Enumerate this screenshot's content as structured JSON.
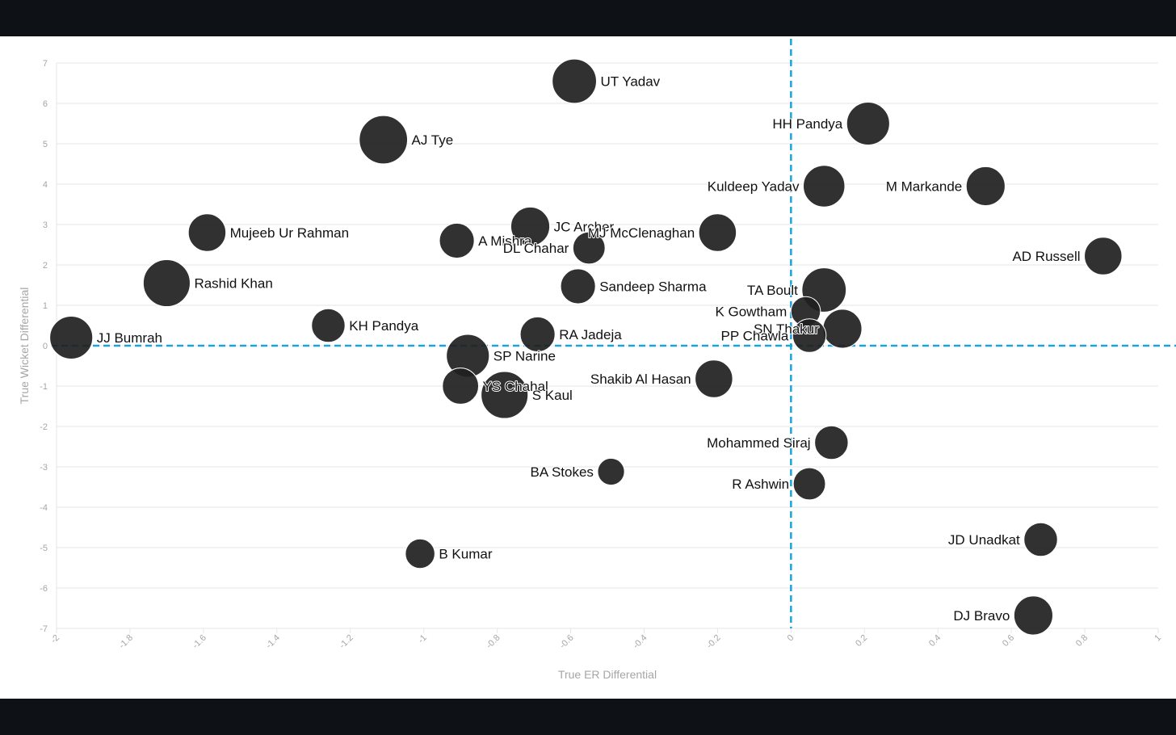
{
  "chart_data": {
    "type": "scatter",
    "title": "",
    "xlabel": "True ER Differential",
    "ylabel": "True Wicket Differential",
    "xlim": [
      -2,
      1
    ],
    "ylim": [
      -7,
      7
    ],
    "x_ticks": [
      -2,
      -1.8,
      -1.6,
      -1.4,
      -1.2,
      -1,
      -0.8,
      -0.6,
      -0.4,
      -0.2,
      0,
      0.2,
      0.4,
      0.6,
      0.8,
      1
    ],
    "y_ticks": [
      7,
      6,
      5,
      4,
      3,
      2,
      1,
      0,
      -1,
      -2,
      -3,
      -4,
      -5,
      -6,
      -7
    ],
    "grid": true,
    "reference_lines": {
      "x": 0,
      "y": 0,
      "color": "#1aa3df"
    },
    "point_color": "#1f1f1f",
    "points": [
      {
        "label": "UT Yadav",
        "x": -0.59,
        "y": 6.55,
        "size": 3.3,
        "label_side": "right"
      },
      {
        "label": "AJ Tye",
        "x": -1.11,
        "y": 5.1,
        "size": 3.6,
        "label_side": "right"
      },
      {
        "label": "HH Pandya",
        "x": 0.21,
        "y": 5.5,
        "size": 3.2,
        "label_side": "left"
      },
      {
        "label": "Kuldeep Yadav",
        "x": 0.09,
        "y": 3.95,
        "size": 3.1,
        "label_side": "left"
      },
      {
        "label": "M Markande",
        "x": 0.53,
        "y": 3.95,
        "size": 2.9,
        "label_side": "left"
      },
      {
        "label": "Mujeeb Ur Rahman",
        "x": -1.59,
        "y": 2.8,
        "size": 2.8,
        "label_side": "right"
      },
      {
        "label": "A Mishra",
        "x": -0.91,
        "y": 2.6,
        "size": 2.6,
        "label_side": "right"
      },
      {
        "label": "JC Archer",
        "x": -0.71,
        "y": 2.95,
        "size": 2.9,
        "label_side": "right"
      },
      {
        "label": "DL Chahar",
        "x": -0.55,
        "y": 2.42,
        "size": 2.4,
        "label_side": "left"
      },
      {
        "label": "MJ McClenaghan",
        "x": -0.2,
        "y": 2.8,
        "size": 2.8,
        "label_side": "left"
      },
      {
        "label": "AD Russell",
        "x": 0.85,
        "y": 2.22,
        "size": 2.8,
        "label_side": "left"
      },
      {
        "label": "Rashid Khan",
        "x": -1.7,
        "y": 1.55,
        "size": 3.5,
        "label_side": "right"
      },
      {
        "label": "Sandeep Sharma",
        "x": -0.58,
        "y": 1.47,
        "size": 2.6,
        "label_side": "right"
      },
      {
        "label": "TA Boult",
        "x": 0.09,
        "y": 1.38,
        "size": 3.3,
        "label_side": "left"
      },
      {
        "label": "K Gowtham",
        "x": 0.04,
        "y": 0.85,
        "size": 2.2,
        "label_side": "left"
      },
      {
        "label": "SN Thakur",
        "x": 0.14,
        "y": 0.42,
        "size": 2.9,
        "label_side": "left"
      },
      {
        "label": "PP Chawla",
        "x": 0.05,
        "y": 0.25,
        "size": 2.5,
        "label_side": "left"
      },
      {
        "label": "KH Pandya",
        "x": -1.26,
        "y": 0.5,
        "size": 2.5,
        "label_side": "right"
      },
      {
        "label": "JJ Bumrah",
        "x": -1.96,
        "y": 0.2,
        "size": 3.2,
        "label_side": "right"
      },
      {
        "label": "RA Jadeja",
        "x": -0.69,
        "y": 0.28,
        "size": 2.6,
        "label_side": "right"
      },
      {
        "label": "SP Narine",
        "x": -0.88,
        "y": -0.25,
        "size": 3.2,
        "label_side": "right"
      },
      {
        "label": "Shakib Al Hasan",
        "x": -0.21,
        "y": -0.82,
        "size": 2.8,
        "label_side": "left"
      },
      {
        "label": "YS Chahal",
        "x": -0.9,
        "y": -1.0,
        "size": 2.7,
        "label_side": "right"
      },
      {
        "label": "S Kaul",
        "x": -0.78,
        "y": -1.22,
        "size": 3.5,
        "label_side": "right"
      },
      {
        "label": "Mohammed Siraj",
        "x": 0.11,
        "y": -2.4,
        "size": 2.5,
        "label_side": "left"
      },
      {
        "label": "BA Stokes",
        "x": -0.49,
        "y": -3.12,
        "size": 2.0,
        "label_side": "left"
      },
      {
        "label": "R Ashwin",
        "x": 0.05,
        "y": -3.42,
        "size": 2.4,
        "label_side": "left"
      },
      {
        "label": "JD Unadkat",
        "x": 0.68,
        "y": -4.8,
        "size": 2.5,
        "label_side": "left"
      },
      {
        "label": "B Kumar",
        "x": -1.01,
        "y": -5.15,
        "size": 2.2,
        "label_side": "right"
      },
      {
        "label": "DJ Bravo",
        "x": 0.66,
        "y": -6.68,
        "size": 2.9,
        "label_side": "left"
      }
    ]
  }
}
